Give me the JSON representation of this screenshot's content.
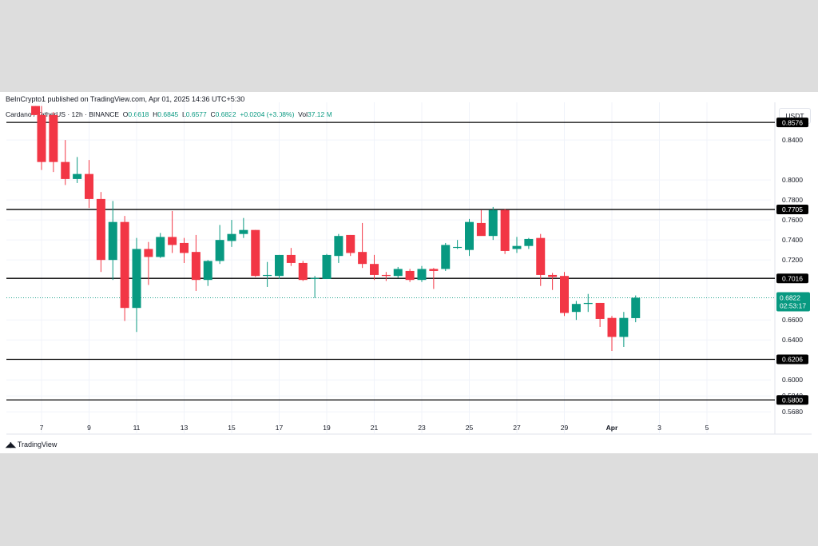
{
  "published": "BeInCrypto1 published on TradingView.com, Apr 01, 2025 14:36 UTC+5:30",
  "legend": {
    "symbol": "Cardano / TetherUS · 12h · BINANCE",
    "o_label": "O",
    "o_value": "0.6618",
    "h_label": "H",
    "h_value": "0.6845",
    "l_label": "L",
    "l_value": "0.6577",
    "c_label": "C",
    "c_value": "0.6822",
    "change": "+0.0204 (+3.08%)",
    "vol_label": "Vol",
    "vol_value": "37.12 M"
  },
  "currency": "USDT",
  "brand": "TradingView",
  "colors": {
    "up": "#089981",
    "down": "#f23645",
    "level_line": "#000000",
    "grid": "#f0f3fa",
    "axis_text": "#131722"
  },
  "chart_data": {
    "type": "candlestick",
    "title": "Cardano / TetherUS · 12h · BINANCE",
    "x_tick_labels": [
      "7",
      "9",
      "11",
      "13",
      "15",
      "17",
      "19",
      "21",
      "23",
      "25",
      "27",
      "29",
      "Apr",
      "3",
      "5"
    ],
    "y_tick_labels": [
      "0.8400",
      "0.8000",
      "0.7800",
      "0.7600",
      "0.7400",
      "0.7200",
      "0.6600",
      "0.6400",
      "0.6000",
      "0.5840",
      "0.5680"
    ],
    "ylim": [
      0.561,
      0.8745
    ],
    "grid": true,
    "levels": [
      0.8576,
      0.7705,
      0.7016,
      0.6206,
      0.58
    ],
    "level_labels": [
      "0.8576",
      "0.7705",
      "0.7016",
      "0.6206",
      "0.5800"
    ],
    "last_price": "0.6822",
    "last_price_value": 0.6822,
    "countdown": "02:53:17",
    "candles": [
      {
        "x": 6.75,
        "o": 0.874,
        "h": 0.874,
        "l": 0.865,
        "c": 0.865
      },
      {
        "x": 7.0,
        "o": 0.865,
        "h": 0.874,
        "l": 0.81,
        "c": 0.818
      },
      {
        "x": 7.5,
        "o": 0.865,
        "h": 0.868,
        "l": 0.808,
        "c": 0.818
      },
      {
        "x": 8.0,
        "o": 0.818,
        "h": 0.84,
        "l": 0.795,
        "c": 0.801
      },
      {
        "x": 8.5,
        "o": 0.801,
        "h": 0.823,
        "l": 0.797,
        "c": 0.806
      },
      {
        "x": 9.0,
        "o": 0.806,
        "h": 0.82,
        "l": 0.772,
        "c": 0.781
      },
      {
        "x": 9.5,
        "o": 0.781,
        "h": 0.788,
        "l": 0.708,
        "c": 0.72
      },
      {
        "x": 10.0,
        "o": 0.72,
        "h": 0.779,
        "l": 0.7,
        "c": 0.758
      },
      {
        "x": 10.5,
        "o": 0.758,
        "h": 0.764,
        "l": 0.659,
        "c": 0.672
      },
      {
        "x": 11.0,
        "o": 0.672,
        "h": 0.742,
        "l": 0.648,
        "c": 0.731
      },
      {
        "x": 11.5,
        "o": 0.731,
        "h": 0.738,
        "l": 0.695,
        "c": 0.723
      },
      {
        "x": 12.0,
        "o": 0.723,
        "h": 0.747,
        "l": 0.722,
        "c": 0.743
      },
      {
        "x": 12.5,
        "o": 0.743,
        "h": 0.769,
        "l": 0.727,
        "c": 0.735
      },
      {
        "x": 13.0,
        "o": 0.737,
        "h": 0.742,
        "l": 0.717,
        "c": 0.727
      },
      {
        "x": 13.5,
        "o": 0.728,
        "h": 0.745,
        "l": 0.689,
        "c": 0.7
      },
      {
        "x": 14.0,
        "o": 0.7,
        "h": 0.72,
        "l": 0.694,
        "c": 0.719
      },
      {
        "x": 14.5,
        "o": 0.719,
        "h": 0.755,
        "l": 0.716,
        "c": 0.74
      },
      {
        "x": 15.0,
        "o": 0.739,
        "h": 0.76,
        "l": 0.733,
        "c": 0.746
      },
      {
        "x": 15.5,
        "o": 0.746,
        "h": 0.762,
        "l": 0.742,
        "c": 0.75
      },
      {
        "x": 16.0,
        "o": 0.75,
        "h": 0.75,
        "l": 0.703,
        "c": 0.704
      },
      {
        "x": 16.5,
        "o": 0.705,
        "h": 0.718,
        "l": 0.693,
        "c": 0.705
      },
      {
        "x": 17.0,
        "o": 0.704,
        "h": 0.725,
        "l": 0.701,
        "c": 0.725
      },
      {
        "x": 17.5,
        "o": 0.725,
        "h": 0.732,
        "l": 0.714,
        "c": 0.717
      },
      {
        "x": 18.0,
        "o": 0.717,
        "h": 0.719,
        "l": 0.699,
        "c": 0.7
      },
      {
        "x": 18.5,
        "o": 0.702,
        "h": 0.704,
        "l": 0.682,
        "c": 0.702
      },
      {
        "x": 19.0,
        "o": 0.701,
        "h": 0.726,
        "l": 0.701,
        "c": 0.725
      },
      {
        "x": 19.5,
        "o": 0.724,
        "h": 0.746,
        "l": 0.717,
        "c": 0.744
      },
      {
        "x": 20.0,
        "o": 0.745,
        "h": 0.745,
        "l": 0.724,
        "c": 0.727
      },
      {
        "x": 20.5,
        "o": 0.728,
        "h": 0.757,
        "l": 0.712,
        "c": 0.716
      },
      {
        "x": 21.0,
        "o": 0.716,
        "h": 0.725,
        "l": 0.7,
        "c": 0.705
      },
      {
        "x": 21.5,
        "o": 0.705,
        "h": 0.708,
        "l": 0.699,
        "c": 0.704
      },
      {
        "x": 22.0,
        "o": 0.704,
        "h": 0.713,
        "l": 0.702,
        "c": 0.711
      },
      {
        "x": 22.5,
        "o": 0.709,
        "h": 0.711,
        "l": 0.698,
        "c": 0.7
      },
      {
        "x": 23.0,
        "o": 0.7,
        "h": 0.714,
        "l": 0.698,
        "c": 0.711
      },
      {
        "x": 23.5,
        "o": 0.711,
        "h": 0.712,
        "l": 0.691,
        "c": 0.709
      },
      {
        "x": 24.0,
        "o": 0.711,
        "h": 0.737,
        "l": 0.709,
        "c": 0.735
      },
      {
        "x": 24.5,
        "o": 0.733,
        "h": 0.74,
        "l": 0.731,
        "c": 0.733
      },
      {
        "x": 25.0,
        "o": 0.73,
        "h": 0.761,
        "l": 0.724,
        "c": 0.758
      },
      {
        "x": 25.5,
        "o": 0.757,
        "h": 0.77,
        "l": 0.745,
        "c": 0.744
      },
      {
        "x": 26.0,
        "o": 0.744,
        "h": 0.773,
        "l": 0.74,
        "c": 0.77
      },
      {
        "x": 26.5,
        "o": 0.77,
        "h": 0.771,
        "l": 0.726,
        "c": 0.729
      },
      {
        "x": 27.0,
        "o": 0.731,
        "h": 0.743,
        "l": 0.727,
        "c": 0.734
      },
      {
        "x": 27.5,
        "o": 0.734,
        "h": 0.742,
        "l": 0.731,
        "c": 0.741
      },
      {
        "x": 28.0,
        "o": 0.742,
        "h": 0.746,
        "l": 0.694,
        "c": 0.705
      },
      {
        "x": 28.5,
        "o": 0.705,
        "h": 0.707,
        "l": 0.69,
        "c": 0.703
      },
      {
        "x": 29.0,
        "o": 0.704,
        "h": 0.708,
        "l": 0.664,
        "c": 0.667
      },
      {
        "x": 29.5,
        "o": 0.668,
        "h": 0.679,
        "l": 0.66,
        "c": 0.676
      },
      {
        "x": 30.0,
        "o": 0.676,
        "h": 0.686,
        "l": 0.668,
        "c": 0.677
      },
      {
        "x": 30.5,
        "o": 0.677,
        "h": 0.677,
        "l": 0.653,
        "c": 0.661
      },
      {
        "x": 31.0,
        "o": 0.662,
        "h": 0.664,
        "l": 0.629,
        "c": 0.643
      },
      {
        "x": 31.5,
        "o": 0.643,
        "h": 0.668,
        "l": 0.633,
        "c": 0.662
      },
      {
        "x": 32.0,
        "o": 0.6618,
        "h": 0.6845,
        "l": 0.6577,
        "c": 0.6822
      }
    ]
  }
}
